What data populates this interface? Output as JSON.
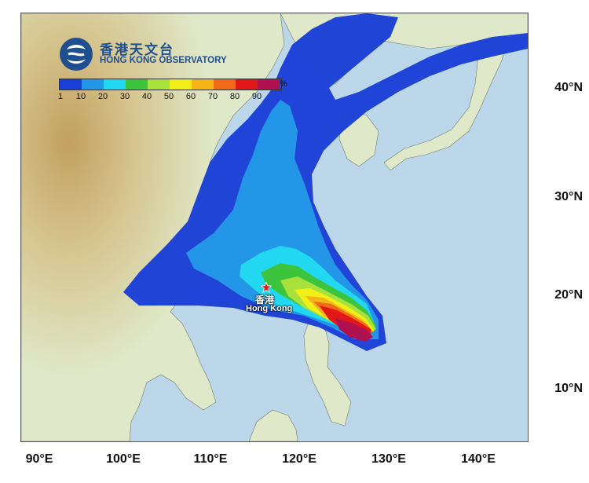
{
  "logo": {
    "name_zh": "香港天文台",
    "name_en": "HONG KONG OBSERVATORY"
  },
  "legend": {
    "tick_labels": [
      "1",
      "10",
      "20",
      "30",
      "40",
      "50",
      "60",
      "70",
      "80",
      "90"
    ],
    "unit": "%",
    "colors": [
      "#1a3fd6",
      "#2496e8",
      "#22d8f0",
      "#3cc43c",
      "#a8e03c",
      "#f0f018",
      "#f5b418",
      "#f06a18",
      "#e01818",
      "#b01050"
    ]
  },
  "axes": {
    "longitude_labels": [
      "90°E",
      "100°E",
      "110°E",
      "120°E",
      "130°E",
      "140°E"
    ],
    "latitude_labels": [
      "40°N",
      "30°N",
      "20°N",
      "10°N"
    ]
  },
  "place": {
    "name_zh": "香港",
    "name_en": "Hong Kong",
    "marker_icon": "red-star-icon"
  },
  "colors": {
    "sea": "#bcd7ea",
    "land_low": "#dfe8c8",
    "land_high": "#c9a868"
  }
}
